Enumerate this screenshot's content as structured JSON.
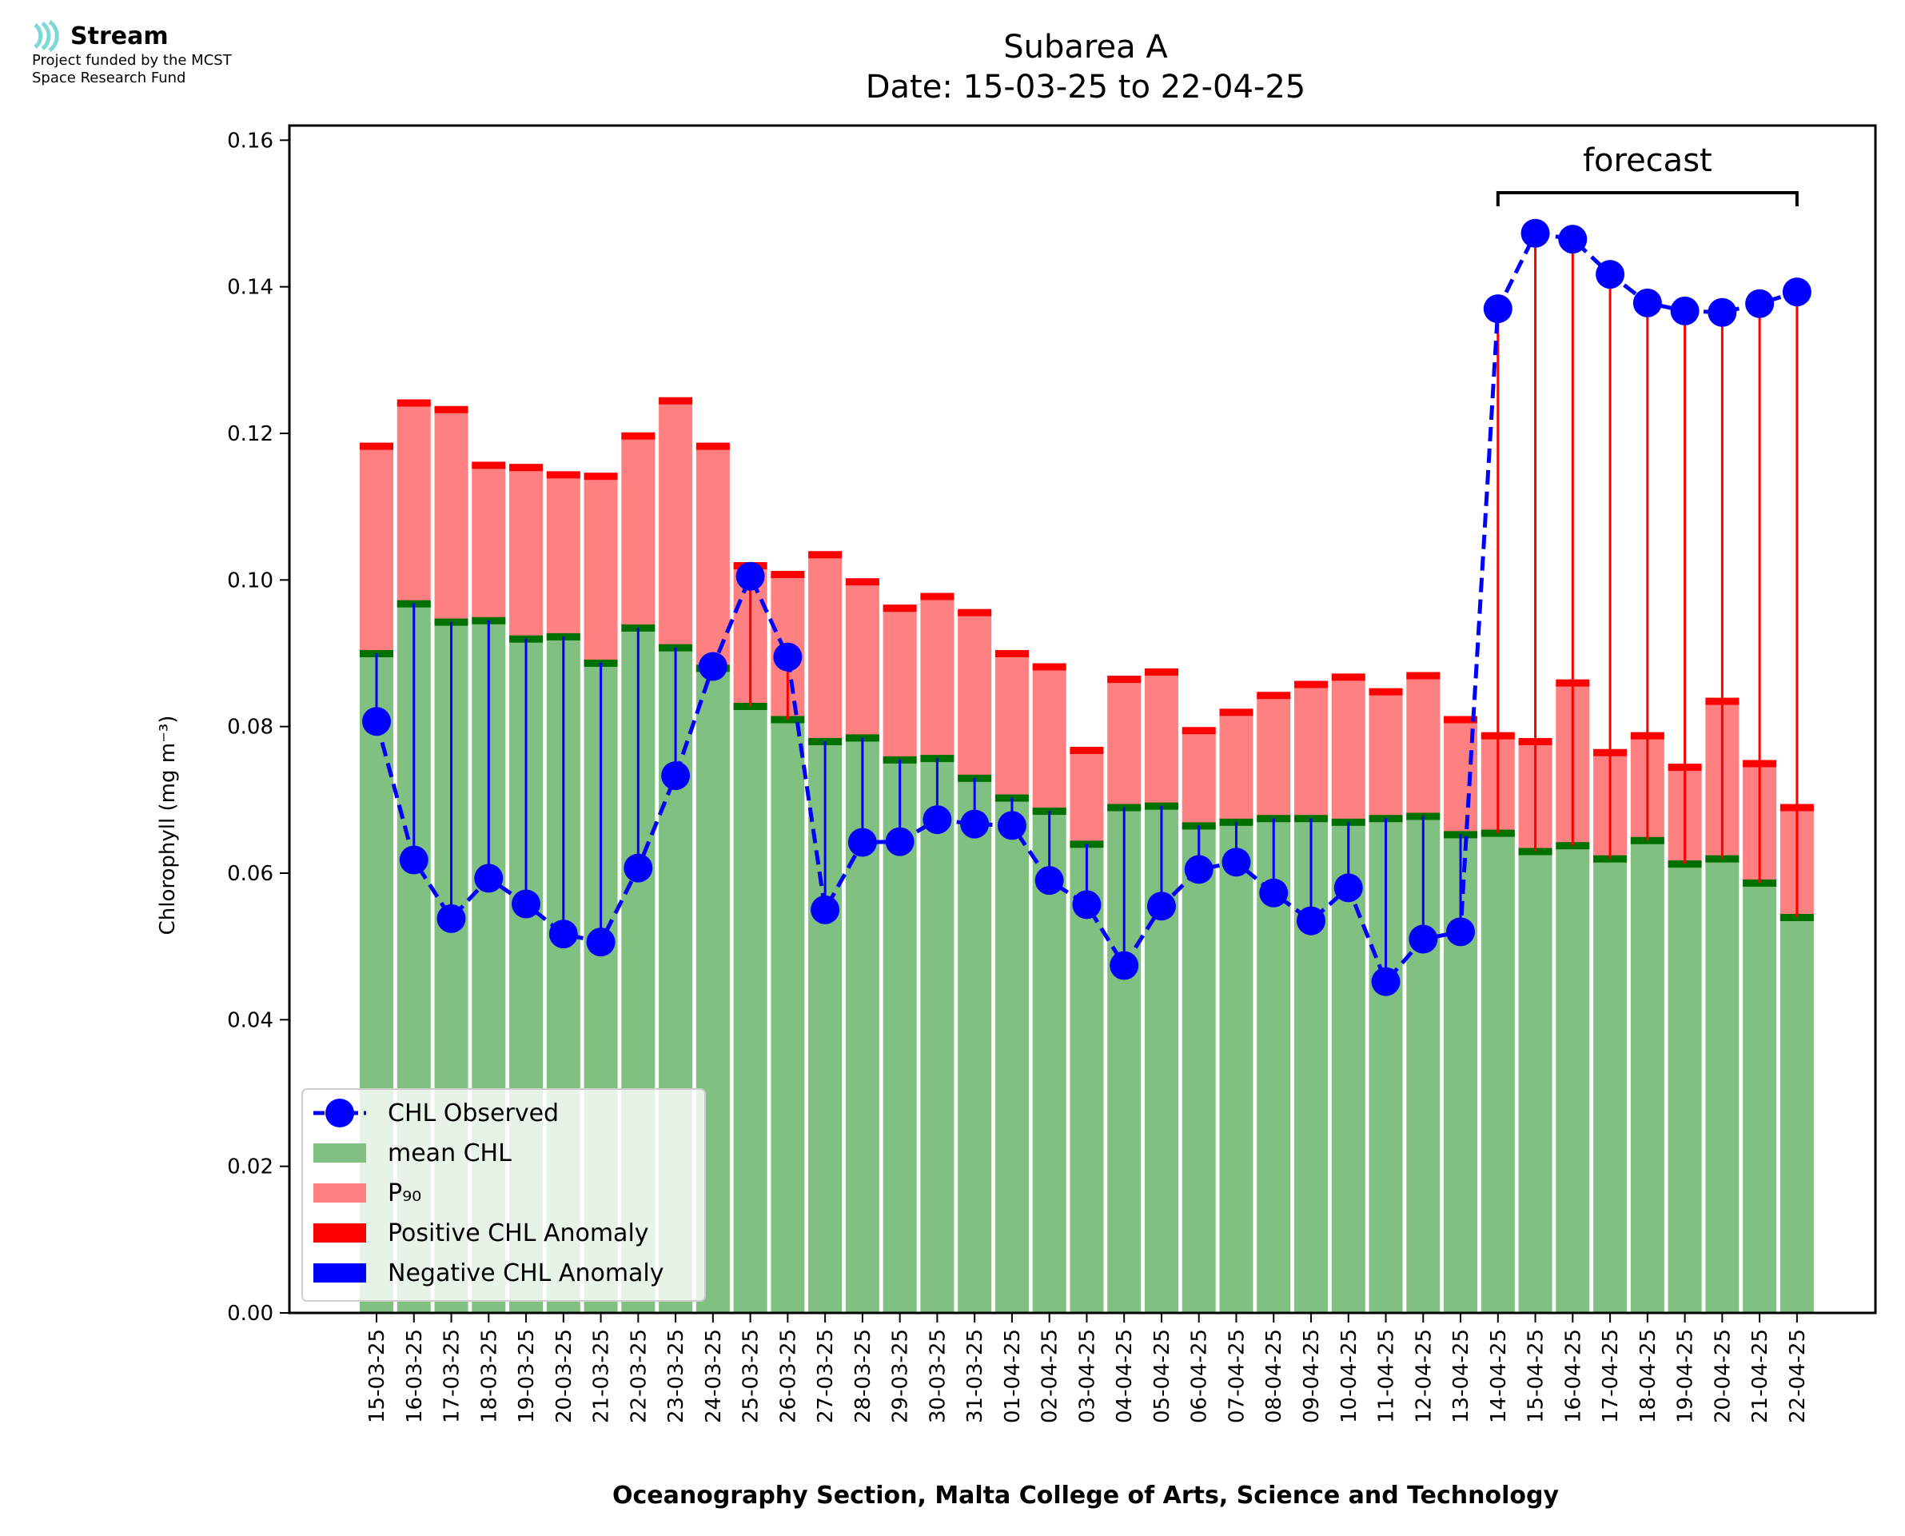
{
  "logo": {
    "name": "Stream",
    "line1": "Project funded by the MCST",
    "line2": "Space Research Fund",
    "color": "#7fd8d8"
  },
  "chart_data": {
    "type": "bar",
    "title_line1": "Subarea A",
    "title_line2": "Date: 15-03-25 to 22-04-25",
    "xlabel": "Oceanography Section, Malta College of Arts, Science and Technology",
    "ylabel": "Chlorophyll (mg m⁻³)",
    "ylim": [
      0,
      0.162
    ],
    "yticks": [
      "0.00",
      "0.02",
      "0.04",
      "0.06",
      "0.08",
      "0.10",
      "0.12",
      "0.14",
      "0.16"
    ],
    "ytick_values": [
      0,
      0.02,
      0.04,
      0.06,
      0.08,
      0.1,
      0.12,
      0.14,
      0.16
    ],
    "forecast_label": "forecast",
    "forecast_range": [
      "14-04-25",
      "22-04-25"
    ],
    "categories": [
      "15-03-25",
      "16-03-25",
      "17-03-25",
      "18-03-25",
      "19-03-25",
      "20-03-25",
      "21-03-25",
      "22-03-25",
      "23-03-25",
      "24-03-25",
      "25-03-25",
      "26-03-25",
      "27-03-25",
      "28-03-25",
      "29-03-25",
      "30-03-25",
      "31-03-25",
      "01-04-25",
      "02-04-25",
      "03-04-25",
      "04-04-25",
      "05-04-25",
      "06-04-25",
      "07-04-25",
      "08-04-25",
      "09-04-25",
      "10-04-25",
      "11-04-25",
      "12-04-25",
      "13-04-25",
      "14-04-25",
      "15-04-25",
      "16-04-25",
      "17-04-25",
      "18-04-25",
      "19-04-25",
      "20-04-25",
      "21-04-25",
      "22-04-25"
    ],
    "series": [
      {
        "name": "mean CHL",
        "color": "#80c080",
        "values": [
          0.09,
          0.0968,
          0.0943,
          0.0945,
          0.092,
          0.0923,
          0.0887,
          0.0935,
          0.0908,
          0.088,
          0.0828,
          0.081,
          0.078,
          0.0785,
          0.0755,
          0.0757,
          0.073,
          0.0703,
          0.0685,
          0.064,
          0.069,
          0.0692,
          0.0665,
          0.067,
          0.0675,
          0.0675,
          0.067,
          0.0675,
          0.0678,
          0.0653,
          0.0655,
          0.063,
          0.0638,
          0.062,
          0.0645,
          0.0613,
          0.062,
          0.0587,
          0.054
        ]
      },
      {
        "name": "P₉₀",
        "color": "#ff8080",
        "values": [
          0.1183,
          0.1242,
          0.1233,
          0.1157,
          0.1154,
          0.1144,
          0.1142,
          0.1197,
          0.1245,
          0.1183,
          0.102,
          0.1008,
          0.1035,
          0.0998,
          0.0962,
          0.0978,
          0.0956,
          0.09,
          0.0882,
          0.0768,
          0.0865,
          0.0875,
          0.0795,
          0.082,
          0.0843,
          0.0858,
          0.0868,
          0.0848,
          0.087,
          0.081,
          0.0788,
          0.078,
          0.086,
          0.0765,
          0.0788,
          0.0745,
          0.0835,
          0.075,
          0.069
        ]
      },
      {
        "name": "CHL Observed",
        "color": "#0000ff",
        "values": [
          0.0807,
          0.0618,
          0.0538,
          0.0593,
          0.0558,
          0.0517,
          0.0506,
          0.0607,
          0.0733,
          0.0882,
          0.1005,
          0.0895,
          0.055,
          0.0642,
          0.0643,
          0.0673,
          0.0667,
          0.0665,
          0.059,
          0.0557,
          0.0474,
          0.0555,
          0.0605,
          0.0615,
          0.0573,
          0.0535,
          0.058,
          0.0452,
          0.051,
          0.052,
          0.137,
          0.1473,
          0.1465,
          0.1417,
          0.1378,
          0.1367,
          0.1365,
          0.1377,
          0.1393
        ]
      }
    ],
    "legend": {
      "position": "lower left",
      "entries": [
        "CHL Observed",
        "mean CHL",
        "P₉₀",
        "Positive CHL Anomaly",
        "Negative CHL Anomaly"
      ]
    },
    "colors": {
      "positive_anomaly": "#ff0000",
      "negative_anomaly": "#0000ff",
      "mean_marker": "#007000",
      "p90_marker": "#ff0000"
    },
    "grid": false
  }
}
